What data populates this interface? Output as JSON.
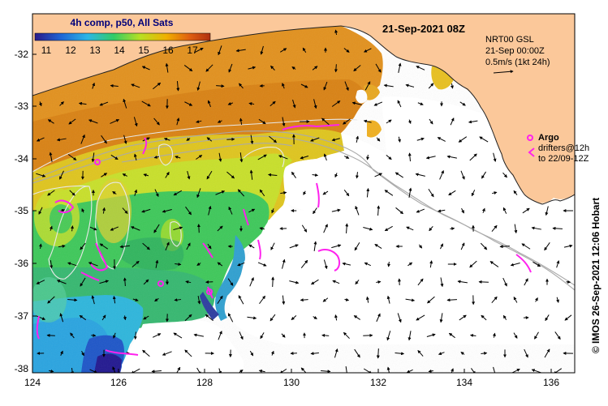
{
  "map": {
    "title": "21-Sep-2021 08Z",
    "colorbar": {
      "label": "4h comp, p50, All Sats",
      "ticks": [
        "11",
        "12",
        "13",
        "14",
        "15",
        "16",
        "17"
      ],
      "colors": [
        "#2a1a8a",
        "#1f66d6",
        "#2bb6e6",
        "#33cc66",
        "#b8e022",
        "#f0b000",
        "#e06010",
        "#b03010"
      ]
    },
    "legend": {
      "current_title": "NRT00 GSL",
      "current_time": "21-Sep 00:00Z",
      "current_scale": "0.5m/s (1kt 24h)",
      "argo_label": "Argo",
      "drifter_line1": "drifters@12h",
      "drifter_line2": "to 22/09-12Z"
    },
    "credit": "© IMOS 26-Sep-2021 12:06 Hobart",
    "x_ticks": [
      "124",
      "126",
      "128",
      "130",
      "132",
      "134",
      "136"
    ],
    "y_ticks": [
      "-32",
      "-33",
      "-34",
      "-35",
      "-36",
      "-37",
      "-38"
    ],
    "colors": {
      "land": "#fbc89a",
      "argo": "#ff22ee",
      "contour": "#e8e8e8",
      "bathymetry": "#aaaaaa"
    }
  }
}
